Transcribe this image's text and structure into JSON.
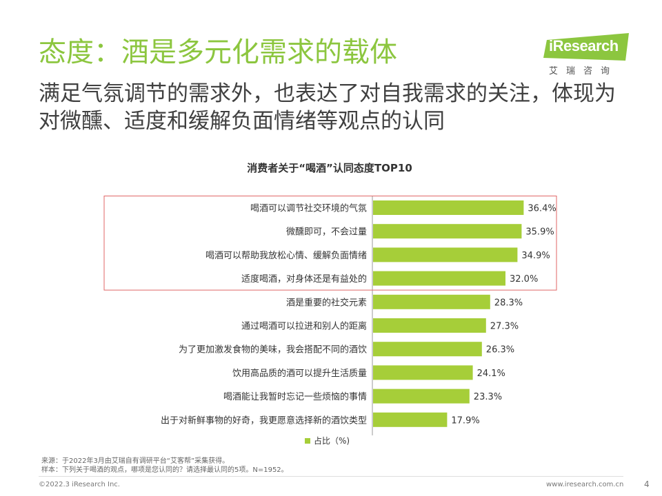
{
  "header": {
    "title": "态度：酒是多元化需求的载体",
    "subtitle": "满足气氛调节的需求外，也表达了对自我需求的关注，体现为对微醺、适度和缓解负面情绪等观点的认同"
  },
  "logo": {
    "brand": "iResearch",
    "cn": "艾瑞咨询"
  },
  "colors": {
    "accent": "#8cc63f",
    "bar": "#a6ce39",
    "highlight_box": "#e06666"
  },
  "chart_data": {
    "type": "bar",
    "orientation": "horizontal",
    "title": "消费者关于“喝酒”认同态度TOP10",
    "categories": [
      "喝酒可以调节社交环境的气氛",
      "微醺即可，不会过量",
      "喝酒可以帮助我放松心情、缓解负面情绪",
      "适度喝酒，对身体还是有益处的",
      "酒是重要的社交元素",
      "通过喝酒可以拉进和别人的距离",
      "为了更加激发食物的美味，我会搭配不同的酒饮",
      "饮用高品质的酒可以提升生活质量",
      "喝酒能让我暂时忘记一些烦恼的事情",
      "出于对新鲜事物的好奇，我更愿意选择新的酒饮类型"
    ],
    "series": [
      {
        "name": "占比（%)",
        "values": [
          36.4,
          35.9,
          34.9,
          32.0,
          28.3,
          27.3,
          26.3,
          24.1,
          23.3,
          17.9
        ]
      }
    ],
    "value_labels": [
      "36.4%",
      "35.9%",
      "34.9%",
      "32.0%",
      "28.3%",
      "27.3%",
      "26.3%",
      "24.1%",
      "23.3%",
      "17.9%"
    ],
    "highlighted_categories": [
      1,
      2,
      3,
      4
    ],
    "xlim": [
      0,
      40
    ],
    "legend": "bottom",
    "legend_label": "占比（%)"
  },
  "footer": {
    "source": "来源：于2022年3月由艾瑞自有调研平台“艾客帮”采集获得。",
    "sample": "样本：下列关于喝酒的观点，哪项是您认同的？请选择最认同的5项。N=1952。",
    "copyright": "©2022.3 iResearch Inc.",
    "website": "www.iresearch.com.cn",
    "page": "4"
  }
}
